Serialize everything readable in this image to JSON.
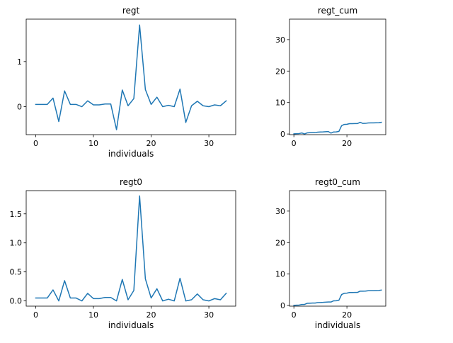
{
  "chart_data": [
    {
      "type": "line",
      "title": "regt",
      "xlabel": "individuals",
      "ylabel": "",
      "xlim": [
        -1.65,
        34.65
      ],
      "ylim": [
        -0.62,
        1.94
      ],
      "xticks": [
        0,
        10,
        20,
        30
      ],
      "yticks": [
        0,
        1
      ],
      "grid": false,
      "series": [
        {
          "x": [
            0,
            1,
            2,
            3,
            4,
            5,
            6,
            7,
            8,
            9,
            10,
            11,
            12,
            13,
            14,
            15,
            16,
            17,
            18,
            19,
            20,
            21,
            22,
            23,
            24,
            25,
            26,
            27,
            28,
            29,
            30,
            31,
            32,
            33
          ],
          "values": [
            0.05,
            0.05,
            0.05,
            0.19,
            -0.33,
            0.35,
            0.05,
            0.05,
            0.0,
            0.13,
            0.04,
            0.04,
            0.06,
            0.06,
            -0.51,
            0.37,
            0.02,
            0.18,
            1.81,
            0.38,
            0.05,
            0.21,
            0.0,
            0.03,
            0.0,
            0.39,
            -0.35,
            0.02,
            0.12,
            0.02,
            0.0,
            0.04,
            0.02,
            0.13
          ]
        }
      ]
    },
    {
      "type": "line",
      "title": "regt_cum",
      "xlabel": "",
      "ylabel": "",
      "xlim": [
        -1.65,
        34.65
      ],
      "ylim": [
        -0.2,
        36.5
      ],
      "xticks": [
        0,
        20
      ],
      "yticks": [
        0,
        10,
        20,
        30
      ],
      "grid": false,
      "series": [
        {
          "x": [
            0,
            1,
            2,
            3,
            4,
            5,
            6,
            7,
            8,
            9,
            10,
            11,
            12,
            13,
            14,
            15,
            16,
            17,
            18,
            19,
            20,
            21,
            22,
            23,
            24,
            25,
            26,
            27,
            28,
            29,
            30,
            31,
            32,
            33
          ],
          "values": [
            0.05,
            0.1,
            0.15,
            0.34,
            0.01,
            0.36,
            0.41,
            0.46,
            0.46,
            0.59,
            0.63,
            0.67,
            0.73,
            0.79,
            0.28,
            0.65,
            0.67,
            0.85,
            2.66,
            3.04,
            3.09,
            3.3,
            3.3,
            3.33,
            3.33,
            3.72,
            3.37,
            3.39,
            3.51,
            3.53,
            3.53,
            3.57,
            3.59,
            3.72
          ]
        }
      ]
    },
    {
      "type": "line",
      "title": "regt0",
      "xlabel": "individuals",
      "ylabel": "",
      "xlim": [
        -1.65,
        34.65
      ],
      "ylim": [
        -0.09,
        1.9
      ],
      "xticks": [
        0,
        10,
        20,
        30
      ],
      "yticks": [
        0.0,
        0.5,
        1.0,
        1.5
      ],
      "ytick_labels": [
        "0.0",
        "0.5",
        "1.0",
        "1.5"
      ],
      "grid": false,
      "series": [
        {
          "x": [
            0,
            1,
            2,
            3,
            4,
            5,
            6,
            7,
            8,
            9,
            10,
            11,
            12,
            13,
            14,
            15,
            16,
            17,
            18,
            19,
            20,
            21,
            22,
            23,
            24,
            25,
            26,
            27,
            28,
            29,
            30,
            31,
            32,
            33
          ],
          "values": [
            0.05,
            0.05,
            0.05,
            0.19,
            0.0,
            0.35,
            0.05,
            0.05,
            0.0,
            0.13,
            0.04,
            0.04,
            0.06,
            0.06,
            0.0,
            0.37,
            0.02,
            0.18,
            1.81,
            0.38,
            0.05,
            0.21,
            0.0,
            0.03,
            0.0,
            0.39,
            0.0,
            0.02,
            0.12,
            0.02,
            0.0,
            0.04,
            0.02,
            0.13
          ]
        }
      ]
    },
    {
      "type": "line",
      "title": "regt0_cum",
      "xlabel": "individuals",
      "ylabel": "",
      "xlim": [
        -1.65,
        34.65
      ],
      "ylim": [
        -0.2,
        36.5
      ],
      "xticks": [
        0,
        20
      ],
      "yticks": [
        0,
        10,
        20,
        30
      ],
      "grid": false,
      "series": [
        {
          "x": [
            0,
            1,
            2,
            3,
            4,
            5,
            6,
            7,
            8,
            9,
            10,
            11,
            12,
            13,
            14,
            15,
            16,
            17,
            18,
            19,
            20,
            21,
            22,
            23,
            24,
            25,
            26,
            27,
            28,
            29,
            30,
            31,
            32,
            33
          ],
          "values": [
            0.05,
            0.1,
            0.15,
            0.34,
            0.34,
            0.69,
            0.74,
            0.79,
            0.79,
            0.92,
            0.96,
            1.0,
            1.06,
            1.12,
            1.12,
            1.49,
            1.51,
            1.69,
            3.5,
            3.88,
            3.93,
            4.14,
            4.14,
            4.17,
            4.17,
            4.56,
            4.56,
            4.58,
            4.7,
            4.72,
            4.72,
            4.76,
            4.78,
            4.91
          ]
        }
      ]
    }
  ]
}
